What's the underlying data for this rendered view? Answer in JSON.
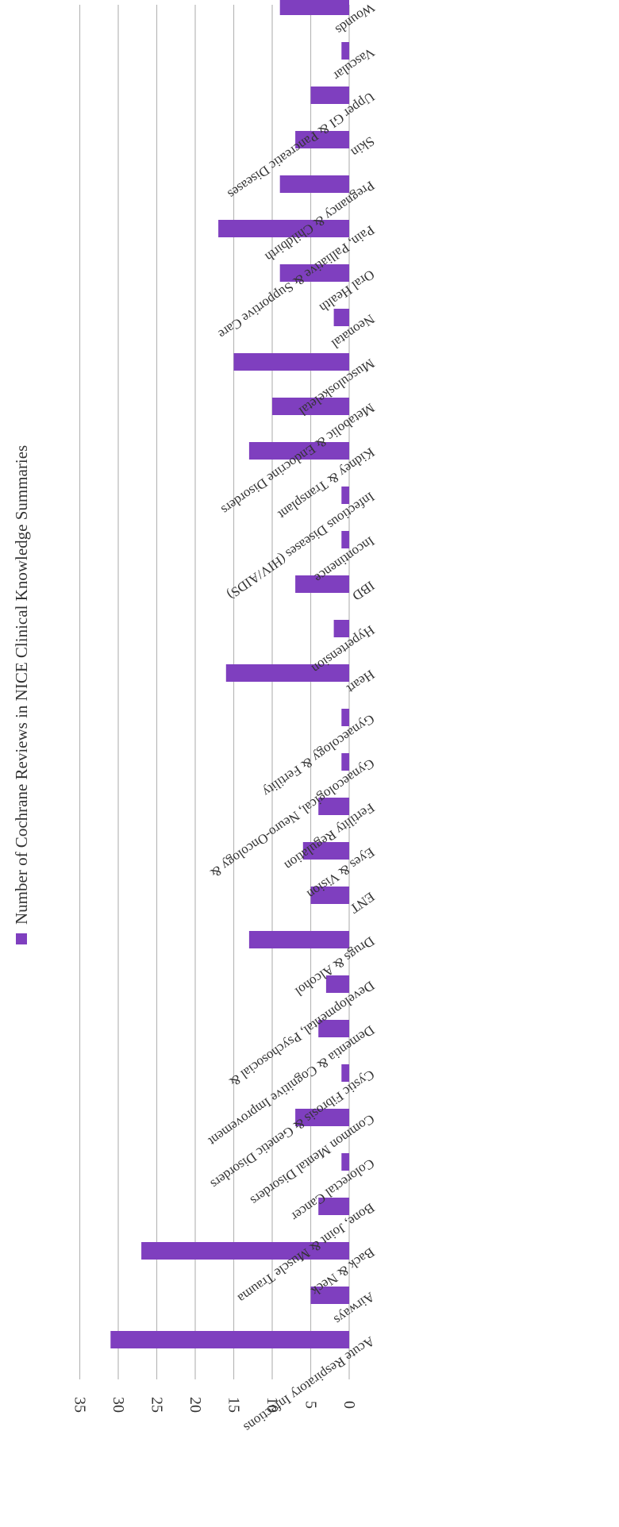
{
  "chart_data": {
    "type": "bar",
    "orientation": "horizontal",
    "rotation": "page rotated 90 degrees clockwise",
    "categories": [
      "Acute Respiratory Infections",
      "Airways",
      "Back & Neck",
      "Bone, Joint & Muscle Trauma",
      "Colorectal Cancer",
      "Common Mental Disorders",
      "Cystic Fibrosis & Genetic Disorders",
      "Dementia & Cognitive Improvement",
      "Developmental, Psychosocial &",
      "Drugs & Alcohol",
      "ENT",
      "Eyes & Vision",
      "Fertility Regulation",
      "Gynaecological, Neuro-Oncology &",
      "Gynaecology & Fertility",
      "Heart",
      "Hypertension",
      "IBD",
      "Incontinence",
      "Infectious Diseases (HIV/AIDS)",
      "Kidney & Transplant",
      "Metabolic & Endocrine Disorders",
      "Musculoskeletal",
      "Neonatal",
      "Oral Health",
      "Pain, Palliative & Supportive Care",
      "Pregnancy & Childbirth",
      "Skin",
      "Upper GI & Pancreatic Diseases",
      "Vascular",
      "Wounds"
    ],
    "series": [
      {
        "name": "Number of Cochrane Reviews in NICE Clinical Knowledge Summaries",
        "color": "#7f3fbf",
        "values": [
          31,
          5,
          27,
          4,
          1,
          7,
          1,
          4,
          3,
          13,
          5,
          6,
          4,
          1,
          1,
          16,
          2,
          7,
          1,
          1,
          13,
          10,
          15,
          2,
          9,
          17,
          9,
          7,
          5,
          1,
          9
        ]
      }
    ],
    "ticks": [
      "0",
      "5",
      "10",
      "15",
      "20",
      "25",
      "30",
      "35"
    ],
    "xlim": [
      0,
      35
    ],
    "grid": true,
    "legend_position": "top"
  }
}
